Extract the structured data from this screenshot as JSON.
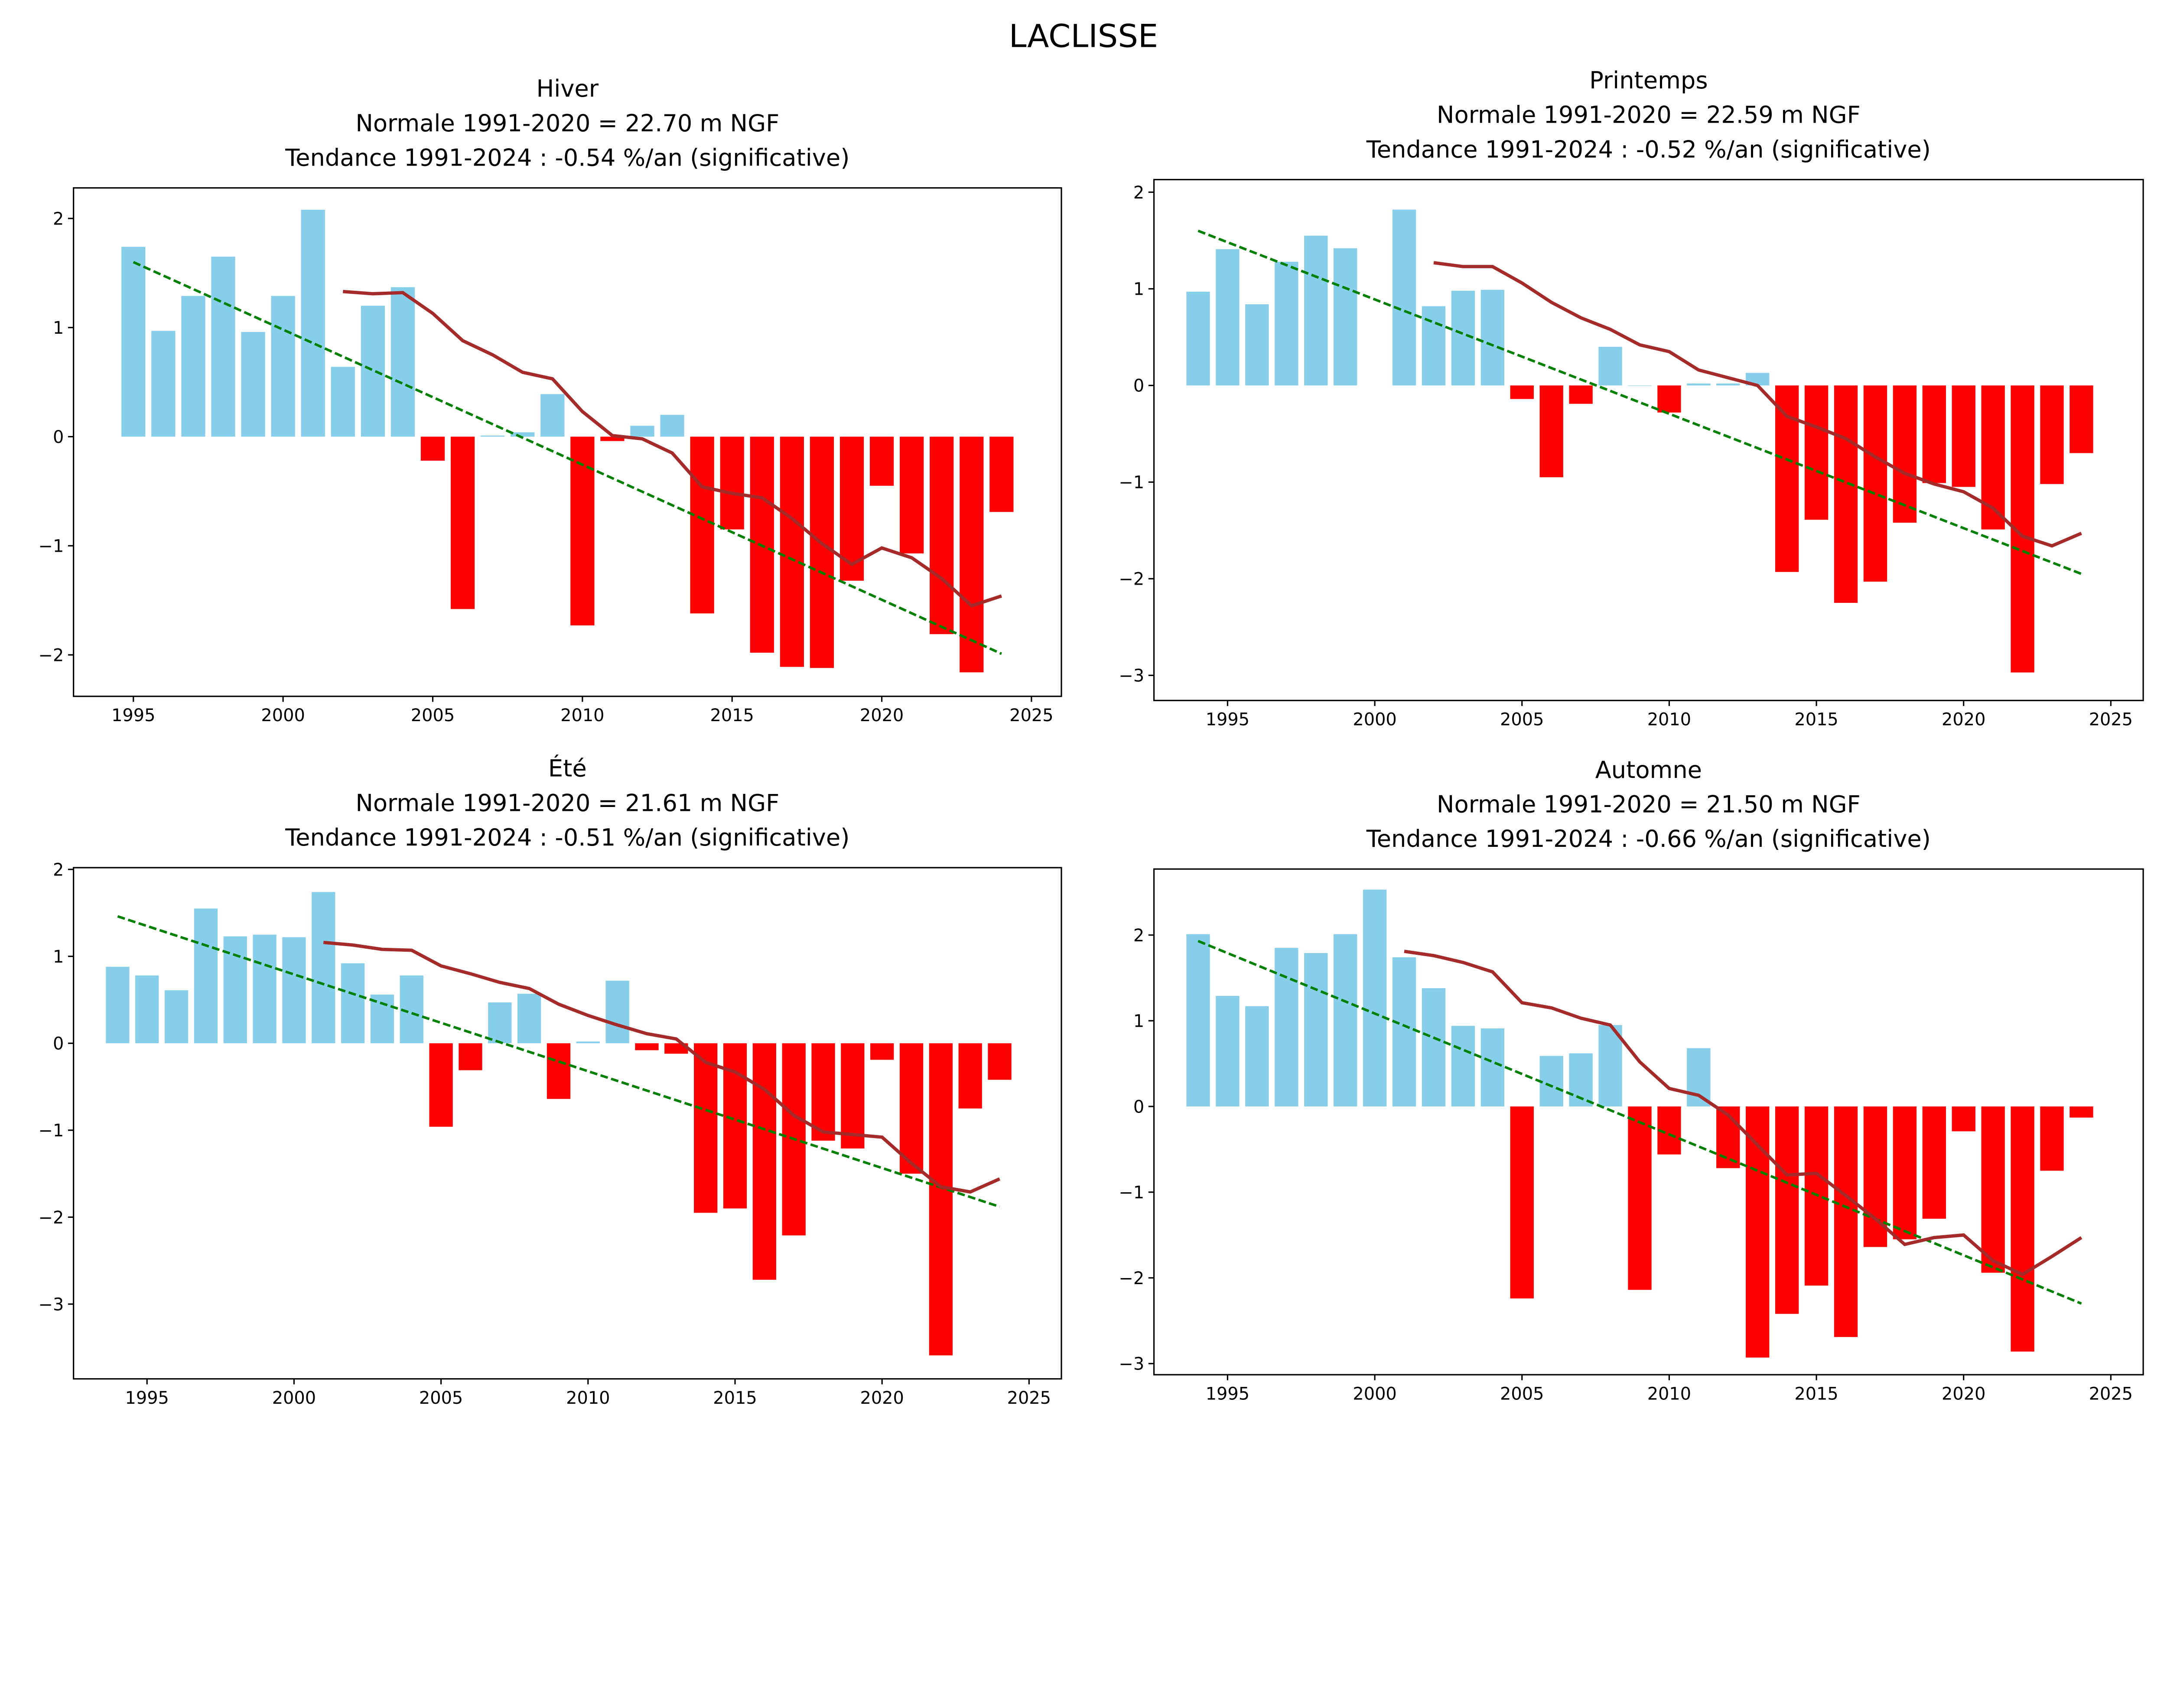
{
  "suptitle": "LACLISSE",
  "colors": {
    "positive": "#87CEEB",
    "negative": "#FF0000",
    "moving_average": "#A52A2A",
    "trend": "#008000"
  },
  "chart_data": [
    {
      "type": "bar",
      "title_lines": [
        "Hiver",
        "Normale 1991-2020 = 22.70 m NGF",
        "Tendance 1991-2024 : -0.54 %/an (significative)"
      ],
      "x": [
        1995,
        1996,
        1997,
        1998,
        1999,
        2000,
        2001,
        2002,
        2003,
        2004,
        2005,
        2006,
        2007,
        2008,
        2009,
        2010,
        2011,
        2012,
        2013,
        2014,
        2015,
        2016,
        2017,
        2018,
        2019,
        2020,
        2021,
        2022,
        2023,
        2024
      ],
      "values": [
        1.74,
        0.97,
        1.29,
        1.65,
        0.96,
        1.29,
        2.08,
        0.64,
        1.2,
        1.37,
        -0.22,
        -1.58,
        0.01,
        0.04,
        0.39,
        -1.73,
        -0.04,
        0.1,
        0.2,
        -1.62,
        -0.85,
        -1.98,
        -2.11,
        -2.12,
        -1.32,
        -0.45,
        -1.07,
        -1.81,
        -2.16,
        -0.69
      ],
      "moving_average": {
        "x_start": 2002,
        "values": [
          1.33,
          1.31,
          1.32,
          1.13,
          0.88,
          0.75,
          0.59,
          0.53,
          0.23,
          0.01,
          -0.02,
          -0.15,
          -0.46,
          -0.52,
          -0.56,
          -0.75,
          -0.98,
          -1.17,
          -1.02,
          -1.11,
          -1.3,
          -1.55,
          -1.46
        ]
      },
      "trend": {
        "x": [
          1995,
          2024
        ],
        "y": [
          1.6,
          -1.99
        ]
      },
      "xlim": [
        1993,
        2026
      ],
      "ylim": [
        -2.38,
        2.28
      ],
      "xticks": [
        1995,
        2000,
        2005,
        2010,
        2015,
        2020,
        2025
      ],
      "yticks": [
        -2,
        -1,
        0,
        1,
        2
      ]
    },
    {
      "type": "bar",
      "title_lines": [
        "Printemps",
        "Normale 1991-2020 = 22.59 m NGF",
        "Tendance 1991-2024 : -0.52 %/an (significative)"
      ],
      "x": [
        1994,
        1995,
        1996,
        1997,
        1998,
        1999,
        2000,
        2001,
        2002,
        2003,
        2004,
        2005,
        2006,
        2007,
        2008,
        2009,
        2010,
        2011,
        2012,
        2013,
        2014,
        2015,
        2016,
        2017,
        2018,
        2019,
        2020,
        2021,
        2022,
        2023,
        2024
      ],
      "values": [
        0.97,
        1.41,
        0.84,
        1.28,
        1.55,
        1.42,
        null,
        1.82,
        0.82,
        0.98,
        0.99,
        -0.14,
        -0.95,
        -0.19,
        0.4,
        0.0,
        -0.28,
        0.02,
        0.02,
        0.13,
        -1.93,
        -1.39,
        -2.25,
        -2.03,
        -1.42,
        -1.01,
        -1.05,
        -1.49,
        -2.97,
        -1.02,
        -0.7
      ],
      "moving_average": {
        "x_start": 2002,
        "values": [
          1.27,
          1.23,
          1.23,
          1.06,
          0.86,
          0.7,
          0.58,
          0.42,
          0.35,
          0.16,
          0.08,
          0.0,
          -0.32,
          -0.43,
          -0.55,
          -0.74,
          -0.91,
          -1.02,
          -1.1,
          -1.27,
          -1.56,
          -1.66,
          -1.53
        ]
      },
      "trend": {
        "x": [
          1994,
          2024
        ],
        "y": [
          1.6,
          -1.95
        ]
      },
      "xlim": [
        1992.5,
        2026.1
      ],
      "ylim": [
        -3.26,
        2.13
      ],
      "xticks": [
        1995,
        2000,
        2005,
        2010,
        2015,
        2020,
        2025
      ],
      "yticks": [
        -3,
        -2,
        -1,
        0,
        1,
        2
      ]
    },
    {
      "type": "bar",
      "title_lines": [
        "Été",
        "Normale 1991-2020 = 21.61 m NGF",
        "Tendance 1991-2024 : -0.51 %/an (significative)"
      ],
      "x": [
        1994,
        1995,
        1996,
        1997,
        1998,
        1999,
        2000,
        2001,
        2002,
        2003,
        2004,
        2005,
        2006,
        2007,
        2008,
        2009,
        2010,
        2011,
        2012,
        2013,
        2014,
        2015,
        2016,
        2017,
        2018,
        2019,
        2020,
        2021,
        2022,
        2023,
        2024
      ],
      "values": [
        0.88,
        0.78,
        0.61,
        1.55,
        1.23,
        1.25,
        1.22,
        1.74,
        0.92,
        0.56,
        0.78,
        -0.96,
        -0.31,
        0.47,
        0.57,
        -0.64,
        0.02,
        0.72,
        -0.08,
        -0.12,
        -1.95,
        -1.9,
        -2.72,
        -2.21,
        -1.12,
        -1.21,
        -0.19,
        -1.5,
        -3.59,
        -0.75,
        -0.42
      ],
      "moving_average": {
        "x_start": 2001,
        "values": [
          1.16,
          1.13,
          1.08,
          1.07,
          0.89,
          0.8,
          0.7,
          0.63,
          0.45,
          0.32,
          0.21,
          0.11,
          0.05,
          -0.22,
          -0.33,
          -0.53,
          -0.83,
          -1.02,
          -1.05,
          -1.08,
          -1.38,
          -1.65,
          -1.71,
          -1.56
        ]
      },
      "trend": {
        "x": [
          1994,
          2024
        ],
        "y": [
          1.46,
          -1.88
        ]
      },
      "xlim": [
        1992.5,
        2026.1
      ],
      "ylim": [
        -3.86,
        2.02
      ],
      "xticks": [
        1995,
        2000,
        2005,
        2010,
        2015,
        2020,
        2025
      ],
      "yticks": [
        -3,
        -2,
        -1,
        0,
        1,
        2
      ]
    },
    {
      "type": "bar",
      "title_lines": [
        "Automne",
        "Normale 1991-2020 = 21.50 m NGF",
        "Tendance 1991-2024 : -0.66 %/an (significative)"
      ],
      "x": [
        1994,
        1995,
        1996,
        1997,
        1998,
        1999,
        2000,
        2001,
        2002,
        2003,
        2004,
        2005,
        2006,
        2007,
        2008,
        2009,
        2010,
        2011,
        2012,
        2013,
        2014,
        2015,
        2016,
        2017,
        2018,
        2019,
        2020,
        2021,
        2022,
        2023,
        2024
      ],
      "values": [
        2.01,
        1.29,
        1.17,
        1.85,
        1.79,
        2.01,
        2.53,
        1.74,
        1.38,
        0.94,
        0.91,
        -2.24,
        0.59,
        0.62,
        0.95,
        -2.14,
        -0.56,
        0.68,
        -0.72,
        -2.93,
        -2.42,
        -2.09,
        -2.69,
        -1.64,
        -1.55,
        -1.31,
        -0.29,
        -1.94,
        -2.86,
        -0.75,
        -0.13
      ],
      "moving_average": {
        "x_start": 2001,
        "values": [
          1.81,
          1.76,
          1.68,
          1.57,
          1.21,
          1.15,
          1.03,
          0.95,
          0.52,
          0.21,
          0.13,
          -0.1,
          -0.45,
          -0.8,
          -0.78,
          -1.04,
          -1.31,
          -1.61,
          -1.53,
          -1.5,
          -1.8,
          -1.96,
          -1.75,
          -1.53
        ]
      },
      "trend": {
        "x": [
          1994,
          2024
        ],
        "y": [
          1.93,
          -2.3
        ]
      },
      "xlim": [
        1992.5,
        2026.1
      ],
      "ylim": [
        -3.13,
        2.77
      ],
      "xticks": [
        1995,
        2000,
        2005,
        2010,
        2015,
        2020,
        2025
      ],
      "yticks": [
        -3,
        -2,
        -1,
        0,
        1,
        2
      ]
    }
  ]
}
